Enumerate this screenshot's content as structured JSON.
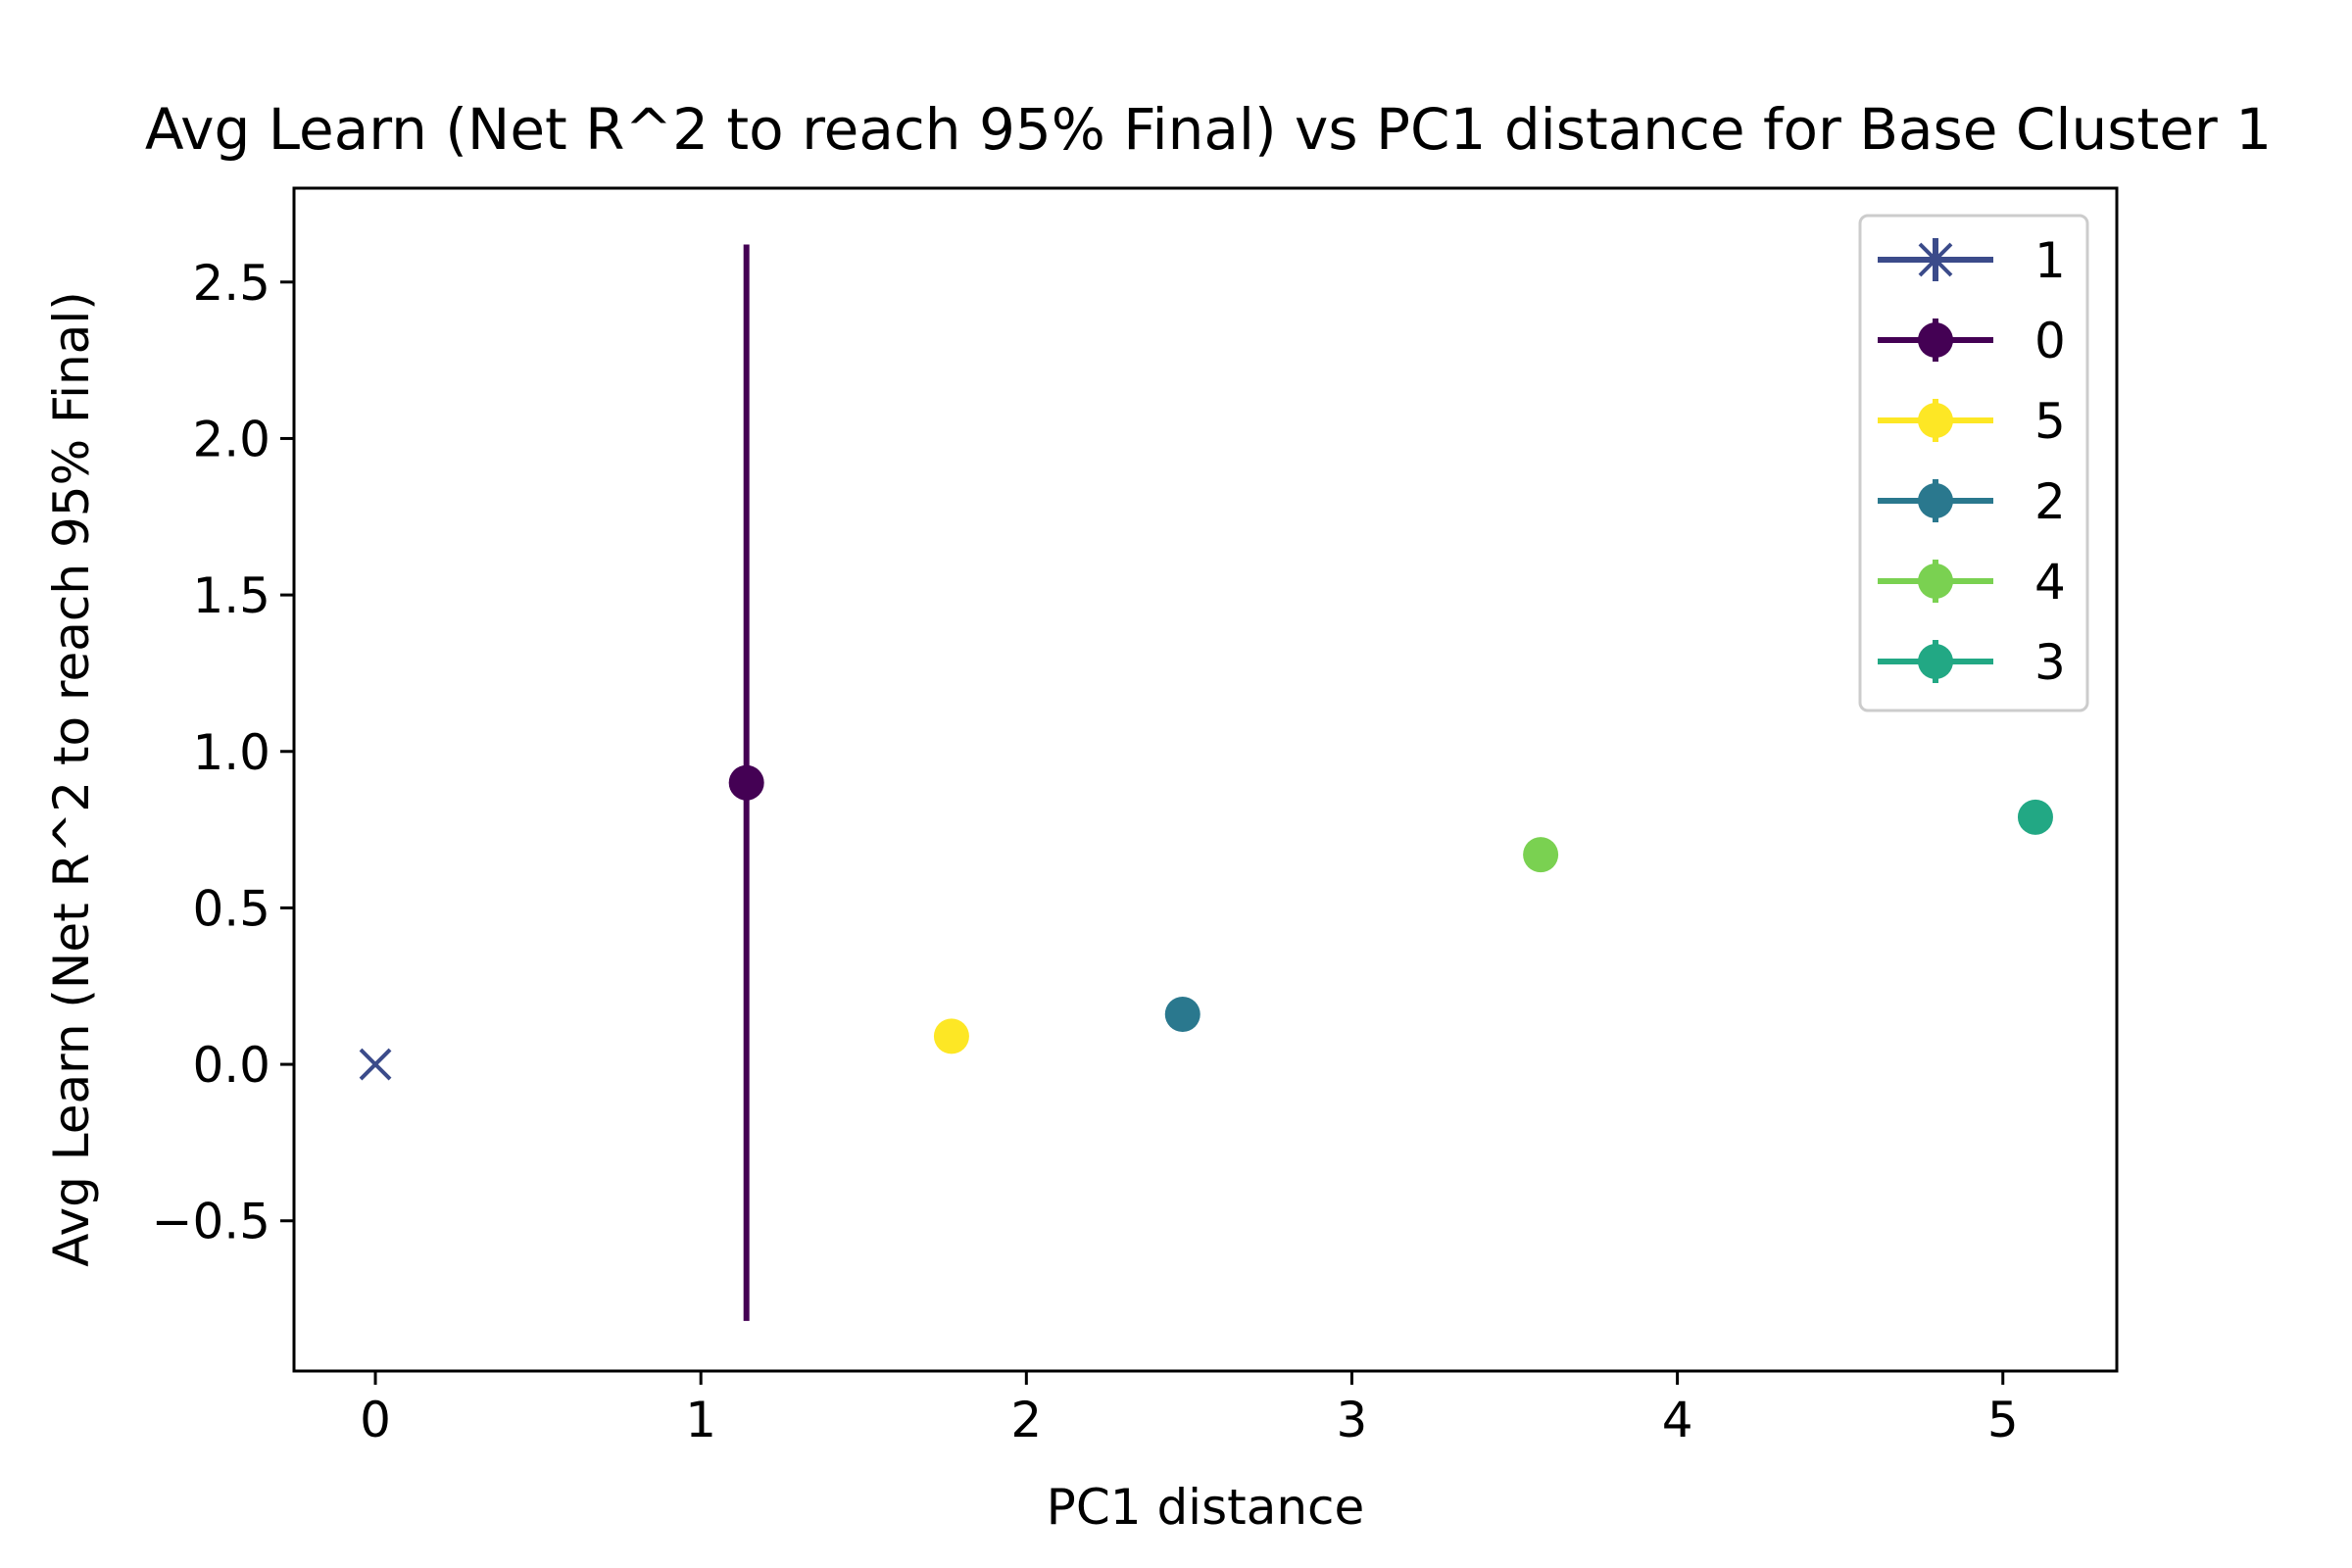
{
  "chart_data": {
    "type": "scatter",
    "title": "Avg Learn (Net R^2 to reach 95% Final) vs PC1 distance for Base Cluster 1",
    "xlabel": "PC1 distance",
    "ylabel": "Avg Learn (Net R^2 to reach 95% Final)",
    "xlim": [
      -0.25,
      5.35
    ],
    "ylim": [
      -0.98,
      2.8
    ],
    "xticks": [
      0,
      1,
      2,
      3,
      4,
      5
    ],
    "xtick_labels": [
      "0",
      "1",
      "2",
      "3",
      "4",
      "5"
    ],
    "yticks": [
      -0.5,
      0.0,
      0.5,
      1.0,
      1.5,
      2.0,
      2.5
    ],
    "ytick_labels": [
      "−0.5",
      "0.0",
      "0.5",
      "1.0",
      "1.5",
      "2.0",
      "2.5"
    ],
    "grid": false,
    "legend_position": "upper-right",
    "series": [
      {
        "name": "1",
        "x": 0.0,
        "y": 0.0,
        "yerr": 0.0,
        "marker": "x",
        "color": "#3b4b8a"
      },
      {
        "name": "0",
        "x": 1.14,
        "y": 0.9,
        "yerr": 1.72,
        "marker": "o",
        "color": "#440154"
      },
      {
        "name": "5",
        "x": 1.77,
        "y": 0.09,
        "yerr": 0.0,
        "marker": "o",
        "color": "#fde725"
      },
      {
        "name": "2",
        "x": 2.48,
        "y": 0.16,
        "yerr": 0.0,
        "marker": "o",
        "color": "#2a788e"
      },
      {
        "name": "4",
        "x": 3.58,
        "y": 0.67,
        "yerr": 0.0,
        "marker": "o",
        "color": "#7ad151"
      },
      {
        "name": "3",
        "x": 5.1,
        "y": 0.79,
        "yerr": 0.0,
        "marker": "o",
        "color": "#22a884"
      }
    ]
  }
}
